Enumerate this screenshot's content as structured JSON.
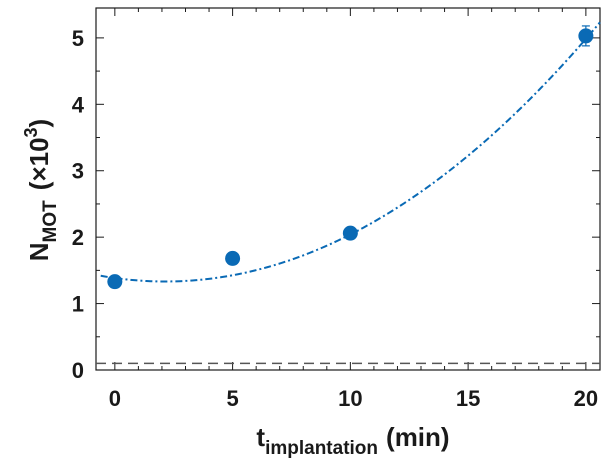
{
  "chart_data": {
    "type": "scatter",
    "xlabel_main": "t",
    "xlabel_sub": "implantation",
    "xlabel_unit": "(min)",
    "ylabel_main": "N",
    "ylabel_sub": "MOT",
    "ylabel_unit_prefix": "(×10",
    "ylabel_unit_exp": "3",
    "ylabel_unit_suffix": ")",
    "xlim": [
      -0.8,
      20.6
    ],
    "ylim": [
      0,
      5.45
    ],
    "x_ticks": [
      0,
      5,
      10,
      15,
      20
    ],
    "y_ticks": [
      0,
      1,
      2,
      3,
      4,
      5
    ],
    "series": [
      {
        "marker": "circle",
        "color": "#0a6ab5",
        "x": [
          0,
          5,
          10,
          20
        ],
        "y": [
          1.33,
          1.68,
          2.06,
          5.03
        ],
        "yerr": [
          0,
          0,
          0,
          0.15
        ]
      }
    ],
    "fit": {
      "style": "dash-dot",
      "color": "#0a6ab5",
      "form": "quadratic",
      "coefficients": [
        1.385,
        -0.049,
        0.01145
      ],
      "x_range": [
        -0.6,
        20.6
      ]
    },
    "baseline": {
      "style": "dashed",
      "color": "#555555",
      "y": 0.1
    },
    "grid": false
  }
}
